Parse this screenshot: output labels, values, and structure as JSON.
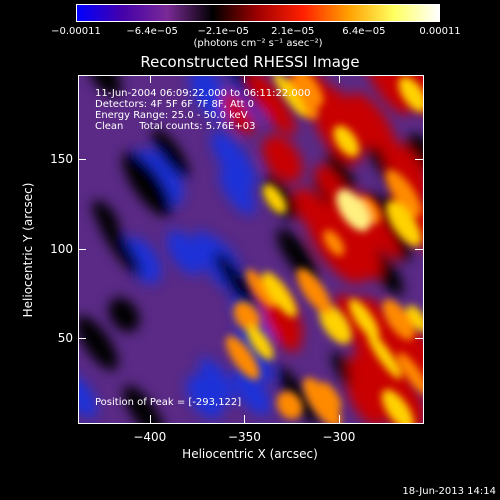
{
  "chart_data": {
    "type": "heatmap",
    "title": "Reconstructed RHESSI Image",
    "xlabel": "Heliocentric X (arcsec)",
    "ylabel": "Heliocentric Y (arcsec)",
    "xlim": [
      -438,
      -255
    ],
    "ylim": [
      2,
      197
    ],
    "x_ticks": [
      -400,
      -350,
      -300
    ],
    "x_tick_labels": [
      "−400",
      "−350",
      "−300"
    ],
    "y_ticks": [
      50,
      100,
      150
    ],
    "y_tick_labels": [
      "50",
      "100",
      "150"
    ],
    "colorbar": {
      "range": [
        -0.00011,
        0.00011
      ],
      "tick_values": [
        -0.00011,
        -6.4e-05,
        -2.1e-05,
        2.1e-05,
        6.4e-05,
        0.00011
      ],
      "tick_labels": [
        "−0.00011",
        "−6.4e−05",
        "−2.1e−05",
        "2.1e−05",
        "6.4e−05",
        "0.00011"
      ],
      "unit_label": "(photons cm⁻² s⁻¹ asec⁻²)",
      "colors": [
        "#0000ff",
        "#4400aa",
        "#7a2a96",
        "#000000",
        "#a00000",
        "#ff2000",
        "#ffa000",
        "#ffff60",
        "#ffffff"
      ]
    },
    "info_lines": [
      "11-Jun-2004 06:09:22.000 to 06:11:22.000",
      "Detectors: 4F 5F 6F 7F 8F, Att 0",
      "Energy Range: 25.0 - 50.0 keV",
      "Clean     Total counts: 5.76E+03"
    ],
    "peak_label": "Position of Peak = [-293,122]",
    "peak": [
      -293,
      122
    ],
    "grid": false
  },
  "footer": {
    "date": "18-Jun-2013 14:14"
  }
}
